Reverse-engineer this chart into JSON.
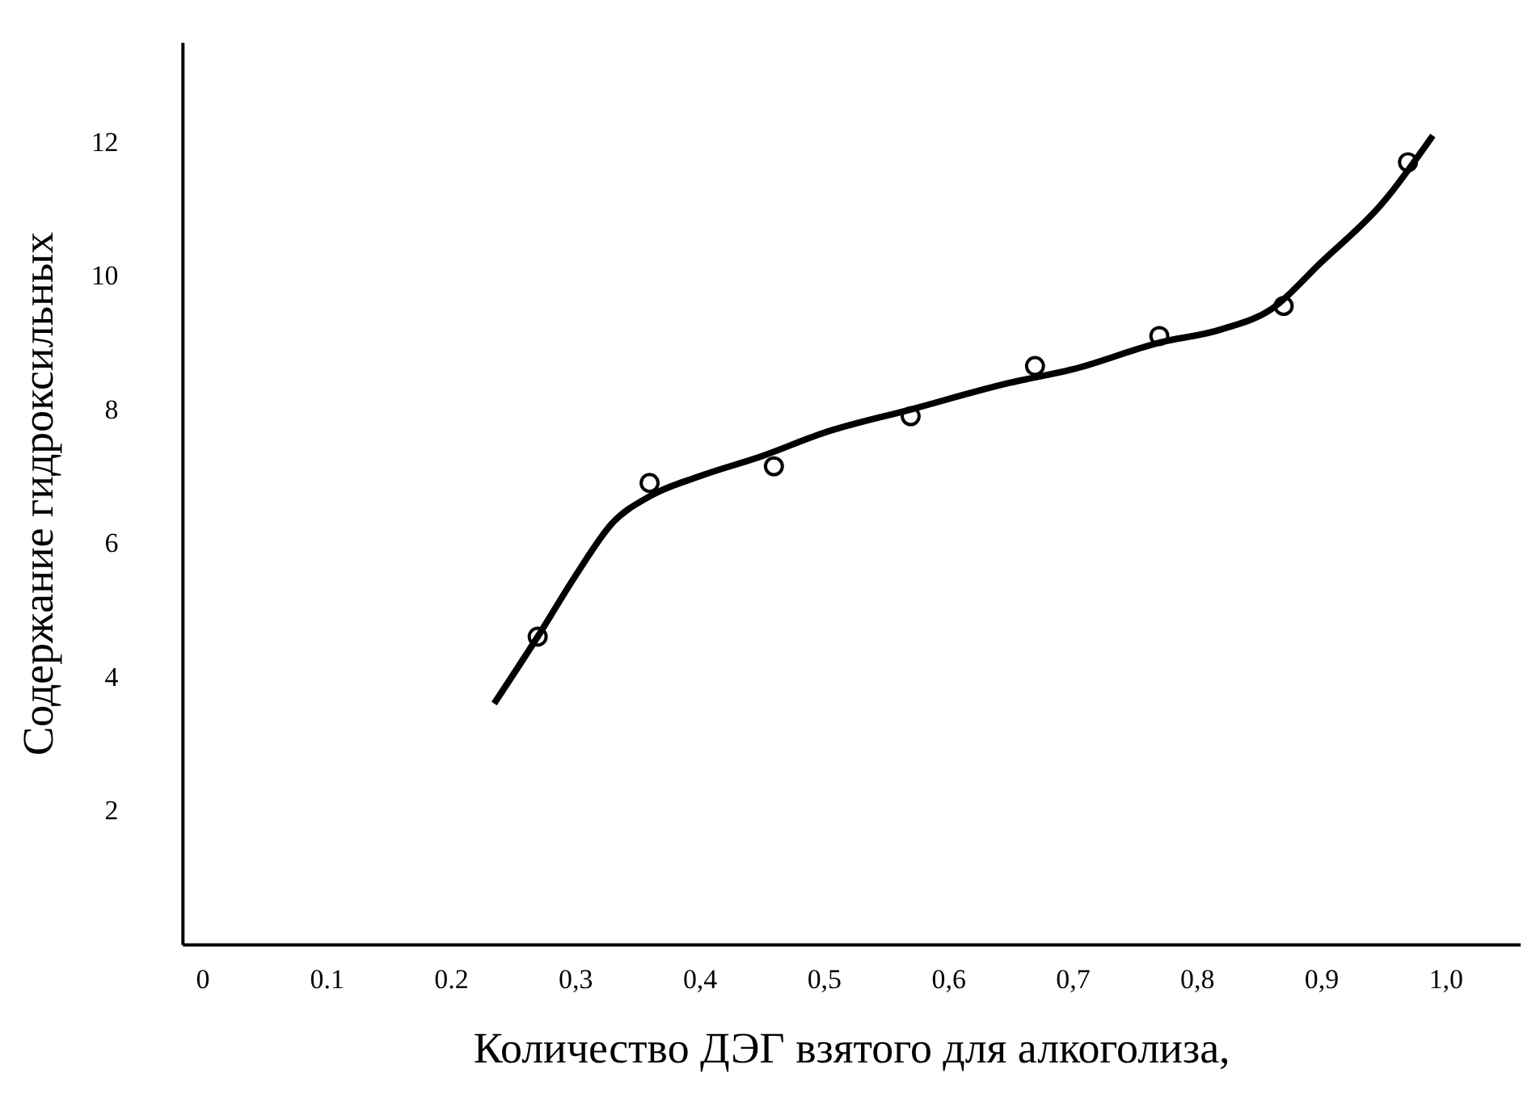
{
  "chart_data": {
    "type": "scatter",
    "xlabel": "Количество ДЭГ взятого для алкоголиза,",
    "ylabel": "Содержание гидроксильных",
    "xlim": [
      -0.016,
      1.06
    ],
    "ylim": [
      0,
      13.5
    ],
    "xticks": [
      0,
      {
        "value": 0.1,
        "label": "0.1"
      },
      {
        "value": 0.2,
        "label": "0.2"
      },
      {
        "value": 0.3,
        "label": "0,3"
      },
      {
        "value": 0.4,
        "label": "0,4"
      },
      {
        "value": 0.5,
        "label": "0,5"
      },
      {
        "value": 0.6,
        "label": "0,6"
      },
      {
        "value": 0.7,
        "label": "0,7"
      },
      {
        "value": 0.8,
        "label": "0,8"
      },
      {
        "value": 0.9,
        "label": "0,9"
      },
      {
        "value": 1.0,
        "label": "1,0"
      }
    ],
    "yticks": [
      2,
      4,
      6,
      8,
      10,
      12
    ],
    "grid": false,
    "series": [
      {
        "marker": "circle",
        "color": "#000000",
        "x": [
          0.27,
          0.36,
          0.46,
          0.57,
          0.67,
          0.77,
          0.87,
          0.97
        ],
        "values": [
          4.6,
          6.9,
          7.15,
          7.9,
          8.65,
          9.1,
          9.55,
          11.7
        ]
      },
      {
        "type": "line",
        "marker": "none",
        "line_style": "solid",
        "color": "#000000",
        "x": [
          0.235,
          0.27,
          0.3,
          0.33,
          0.36,
          0.4,
          0.45,
          0.5,
          0.57,
          0.65,
          0.7,
          0.77,
          0.82,
          0.86,
          0.9,
          0.95,
          0.99
        ],
        "values": [
          3.6,
          4.6,
          5.5,
          6.3,
          6.7,
          7.0,
          7.3,
          7.65,
          8.0,
          8.4,
          8.6,
          9.0,
          9.2,
          9.5,
          10.2,
          11.1,
          12.1
        ]
      }
    ]
  }
}
